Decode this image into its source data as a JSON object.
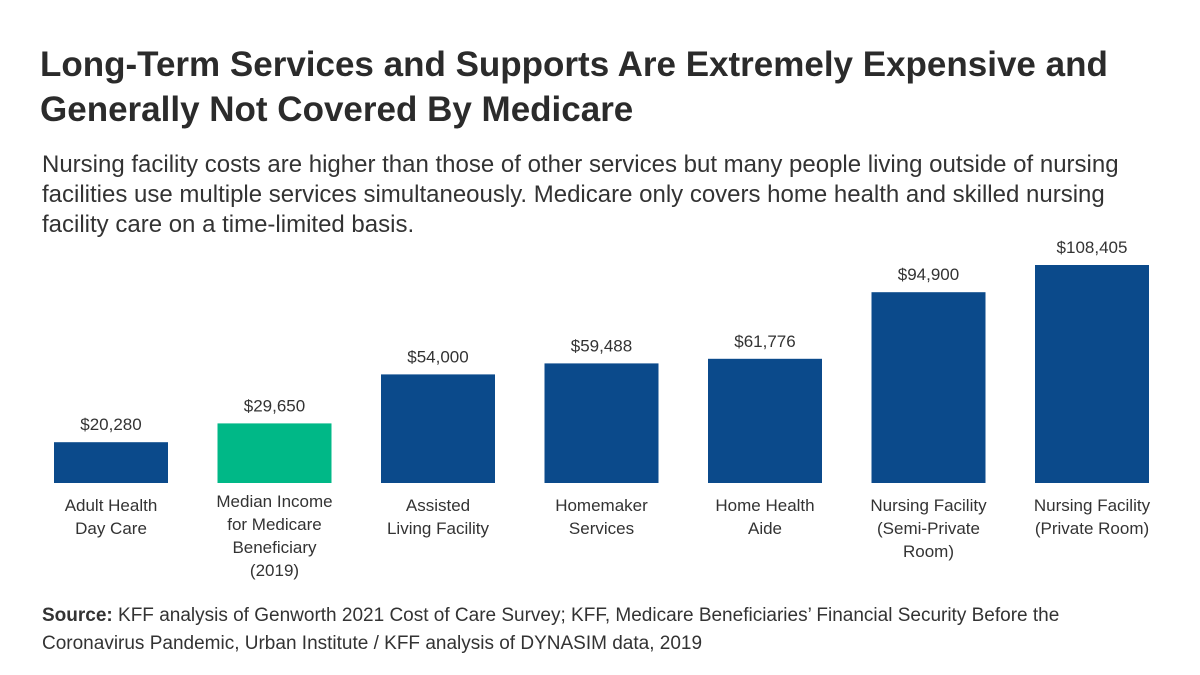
{
  "header": {
    "title": "Long-Term Services and Supports Are Extremely Expensive and Generally Not Covered By Medicare",
    "subtitle": "Nursing facility costs are higher than those of other services but many people living outside of nursing facilities use multiple services simultaneously. Medicare only covers home health and skilled nursing facility care on a time-limited basis."
  },
  "chart_data": {
    "type": "bar",
    "title": "",
    "xlabel": "",
    "ylabel": "",
    "ylim": [
      0,
      108405
    ],
    "grid": false,
    "categories": [
      [
        "Adult Health",
        "Day Care"
      ],
      [
        "Median Income",
        "for Medicare",
        "Beneficiary",
        "(2019)"
      ],
      [
        "Assisted",
        "Living Facility"
      ],
      [
        "Homemaker",
        "Services"
      ],
      [
        "Home Health",
        "Aide"
      ],
      [
        "Nursing Facility",
        "(Semi-Private",
        "Room)"
      ],
      [
        "Nursing Facility",
        "(Private Room)"
      ]
    ],
    "values": [
      20280,
      29650,
      54000,
      59488,
      61776,
      94900,
      108405
    ],
    "value_labels": [
      "$20,280",
      "$29,650",
      "$54,000",
      "$59,488",
      "$61,776",
      "$94,900",
      "$108,405"
    ],
    "colors": [
      "#0b4a8b",
      "#00b887",
      "#0b4a8b",
      "#0b4a8b",
      "#0b4a8b",
      "#0b4a8b",
      "#0b4a8b"
    ]
  },
  "footer": {
    "source_label": "Source:",
    "source_text": " KFF analysis of Genworth 2021 Cost of Care Survey; KFF, Medicare Beneficiaries’ Financial Security Before the Coronavirus Pandemic, Urban Institute / KFF analysis of DYNASIM data, 2019"
  }
}
